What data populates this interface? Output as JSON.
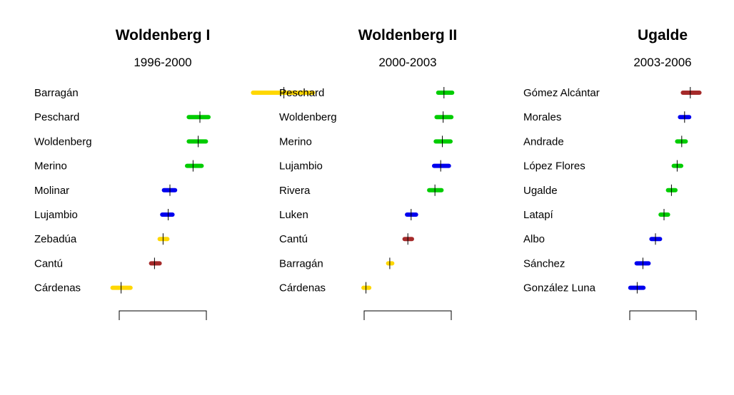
{
  "colors": {
    "yellow": "#FFD700",
    "green": "#00CC00",
    "blue": "#0000EE",
    "darkred": "#A52A2A"
  },
  "chart_data": [
    {
      "type": "scatter",
      "title": "Woldenberg I",
      "subtitle": "1996-2000",
      "members": [
        {
          "name": "Barragán",
          "estimate": 1.68,
          "low": 1.32,
          "high": 2.02,
          "color": "yellow"
        },
        {
          "name": "Peschard",
          "estimate": 0.7,
          "low": 0.57,
          "high": 0.8,
          "color": "green"
        },
        {
          "name": "Woldenberg",
          "estimate": 0.68,
          "low": 0.57,
          "high": 0.77,
          "color": "green"
        },
        {
          "name": "Merino",
          "estimate": 0.62,
          "low": 0.55,
          "high": 0.72,
          "color": "green"
        },
        {
          "name": "Molinar",
          "estimate": 0.35,
          "low": 0.28,
          "high": 0.41,
          "color": "blue"
        },
        {
          "name": "Lujambio",
          "estimate": 0.33,
          "low": 0.26,
          "high": 0.38,
          "color": "blue"
        },
        {
          "name": "Zebadúa",
          "estimate": 0.27,
          "low": 0.23,
          "high": 0.32,
          "color": "yellow"
        },
        {
          "name": "Cantú",
          "estimate": 0.17,
          "low": 0.13,
          "high": 0.23,
          "color": "darkred"
        },
        {
          "name": "Cárdenas",
          "estimate": -0.22,
          "low": -0.32,
          "high": -0.11,
          "color": "yellow"
        }
      ]
    },
    {
      "type": "scatter",
      "title": "Woldenberg II",
      "subtitle": "2000-2003",
      "members": [
        {
          "name": "Peschard",
          "estimate": 0.92,
          "low": 0.85,
          "high": 1.02,
          "color": "green"
        },
        {
          "name": "Woldenberg",
          "estimate": 0.91,
          "low": 0.83,
          "high": 1.01,
          "color": "green"
        },
        {
          "name": "Merino",
          "estimate": 0.9,
          "low": 0.82,
          "high": 1.0,
          "color": "green"
        },
        {
          "name": "Lujambio",
          "estimate": 0.88,
          "low": 0.8,
          "high": 0.98,
          "color": "blue"
        },
        {
          "name": "Rivera",
          "estimate": 0.81,
          "low": 0.74,
          "high": 0.89,
          "color": "green"
        },
        {
          "name": "Luken",
          "estimate": 0.52,
          "low": 0.47,
          "high": 0.58,
          "color": "blue"
        },
        {
          "name": "Cantú",
          "estimate": 0.48,
          "low": 0.44,
          "high": 0.53,
          "color": "darkred"
        },
        {
          "name": "Barragán",
          "estimate": 0.26,
          "low": 0.24,
          "high": 0.29,
          "color": "yellow"
        },
        {
          "name": "Cárdenas",
          "estimate": -0.03,
          "low": -0.06,
          "high": 0.01,
          "color": "yellow"
        }
      ]
    },
    {
      "type": "scatter",
      "title": "Ugalde",
      "subtitle": "2003-2006",
      "members": [
        {
          "name": "Gómez Alcántar",
          "estimate": 1.01,
          "low": 0.88,
          "high": 1.17,
          "color": "darkred"
        },
        {
          "name": "Morales",
          "estimate": 0.91,
          "low": 0.83,
          "high": 0.99,
          "color": "blue"
        },
        {
          "name": "Andrade",
          "estimate": 0.86,
          "low": 0.78,
          "high": 0.93,
          "color": "green"
        },
        {
          "name": "López Flores",
          "estimate": 0.78,
          "low": 0.72,
          "high": 0.85,
          "color": "green"
        },
        {
          "name": "Ugalde",
          "estimate": 0.68,
          "low": 0.62,
          "high": 0.75,
          "color": "green"
        },
        {
          "name": "Latapí",
          "estimate": 0.55,
          "low": 0.49,
          "high": 0.62,
          "color": "green"
        },
        {
          "name": "Albo",
          "estimate": 0.4,
          "low": 0.33,
          "high": 0.48,
          "color": "blue"
        },
        {
          "name": "Sánchez",
          "estimate": 0.18,
          "low": 0.07,
          "high": 0.28,
          "color": "blue"
        },
        {
          "name": "González Luna",
          "estimate": 0.08,
          "low": -0.04,
          "high": 0.19,
          "color": "blue"
        }
      ]
    }
  ]
}
